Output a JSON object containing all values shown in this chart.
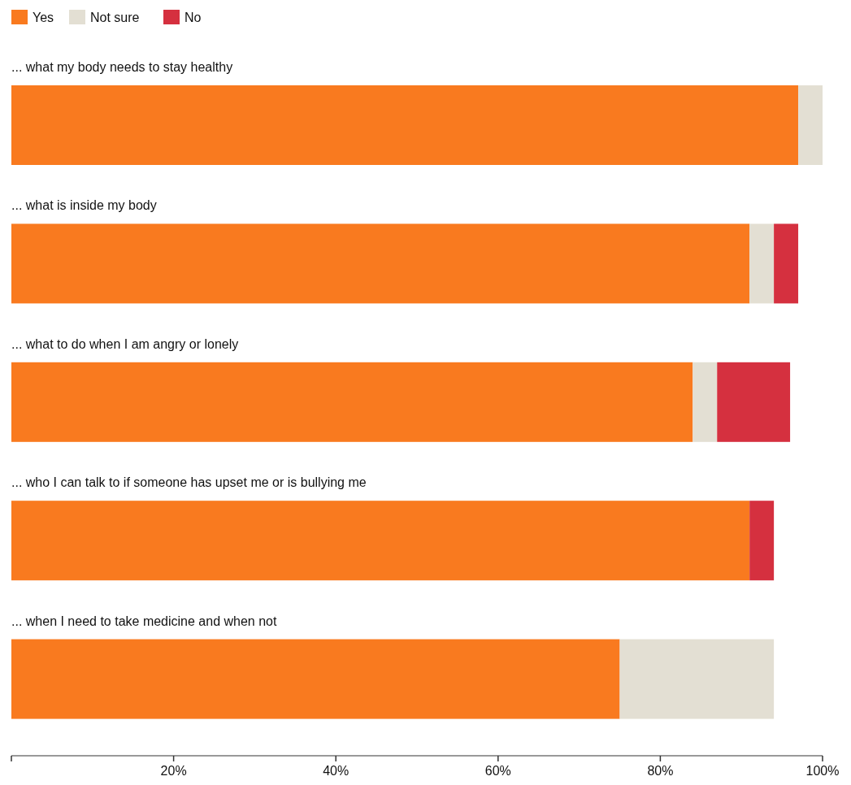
{
  "chart_data": {
    "type": "bar",
    "orientation": "horizontal",
    "stacked": true,
    "categories": [
      "... what my body needs to stay healthy",
      "... what is inside my body",
      "... what to do when I am angry or lonely",
      "... who I can talk to if someone has upset me or is bullying me",
      "... when I need to take medicine and when not"
    ],
    "series": [
      {
        "name": "Yes",
        "color": "#f97a1f",
        "values": [
          97,
          91,
          84,
          91,
          75
        ]
      },
      {
        "name": "Not sure",
        "color": "#e3dfd3",
        "values": [
          3,
          3,
          3,
          0,
          19
        ]
      },
      {
        "name": "No",
        "color": "#d5303f",
        "values": [
          0,
          3,
          9,
          3,
          0
        ]
      }
    ],
    "xlim": [
      0,
      100
    ],
    "xticks": [
      {
        "value": 20,
        "label": "20%"
      },
      {
        "value": 40,
        "label": "40%"
      },
      {
        "value": 60,
        "label": "60%"
      },
      {
        "value": 80,
        "label": "80%"
      },
      {
        "value": 100,
        "label": "100%"
      }
    ],
    "legend": "top left",
    "grid": false
  }
}
